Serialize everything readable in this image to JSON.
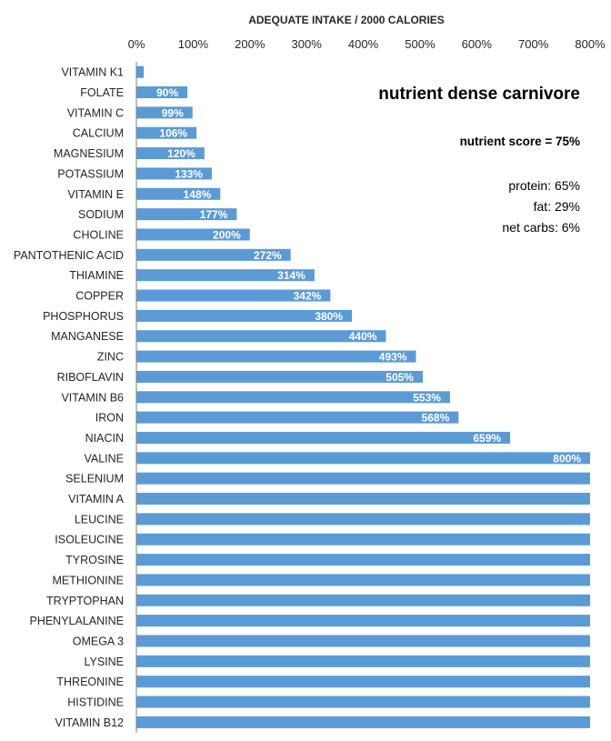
{
  "chart_data": {
    "type": "bar",
    "orientation": "horizontal",
    "title": "ADEQUATE INTAKE / 2000 CALORIES",
    "xlim": [
      0,
      800
    ],
    "x_ticks": [
      "0%",
      "100%",
      "200%",
      "300%",
      "400%",
      "500%",
      "600%",
      "700%",
      "800%"
    ],
    "x_axis_position": "top",
    "grid": false,
    "categories": [
      "VITAMIN K1",
      "FOLATE",
      "VITAMIN C",
      "CALCIUM",
      "MAGNESIUM",
      "POTASSIUM",
      "VITAMIN E",
      "SODIUM",
      "CHOLINE",
      "PANTOTHENIC ACID",
      "THIAMINE",
      "COPPER",
      "PHOSPHORUS",
      "MANGANESE",
      "ZINC",
      "RIBOFLAVIN",
      "VITAMIN B6",
      "IRON",
      "NIACIN",
      "VALINE",
      "SELENIUM",
      "VITAMIN A",
      "LEUCINE",
      "ISOLEUCINE",
      "TYROSINE",
      "METHIONINE",
      "TRYPTOPHAN",
      "PHENYLALANINE",
      "OMEGA 3",
      "LYSINE",
      "THREONINE",
      "HISTIDINE",
      "VITAMIN B12"
    ],
    "values": [
      13,
      90,
      99,
      106,
      120,
      133,
      148,
      177,
      200,
      272,
      314,
      342,
      380,
      440,
      493,
      505,
      553,
      568,
      659,
      800,
      800,
      800,
      800,
      800,
      800,
      800,
      800,
      800,
      800,
      800,
      800,
      800,
      800
    ],
    "data_labels": [
      "",
      "90%",
      "99%",
      "106%",
      "120%",
      "133%",
      "148%",
      "177%",
      "200%",
      "272%",
      "314%",
      "342%",
      "380%",
      "440%",
      "493%",
      "505%",
      "553%",
      "568%",
      "659%",
      "800%",
      "",
      "",
      "",
      "",
      "",
      "",
      "",
      "",
      "",
      "",
      "",
      "",
      ""
    ],
    "bar_color": "#5b9bd5",
    "annotations": {
      "heading": "nutrient dense carnivore",
      "score": "nutrient score = 75%",
      "protein": "protein: 65%",
      "fat": "fat: 29%",
      "net_carbs": "net carbs: 6%"
    }
  }
}
